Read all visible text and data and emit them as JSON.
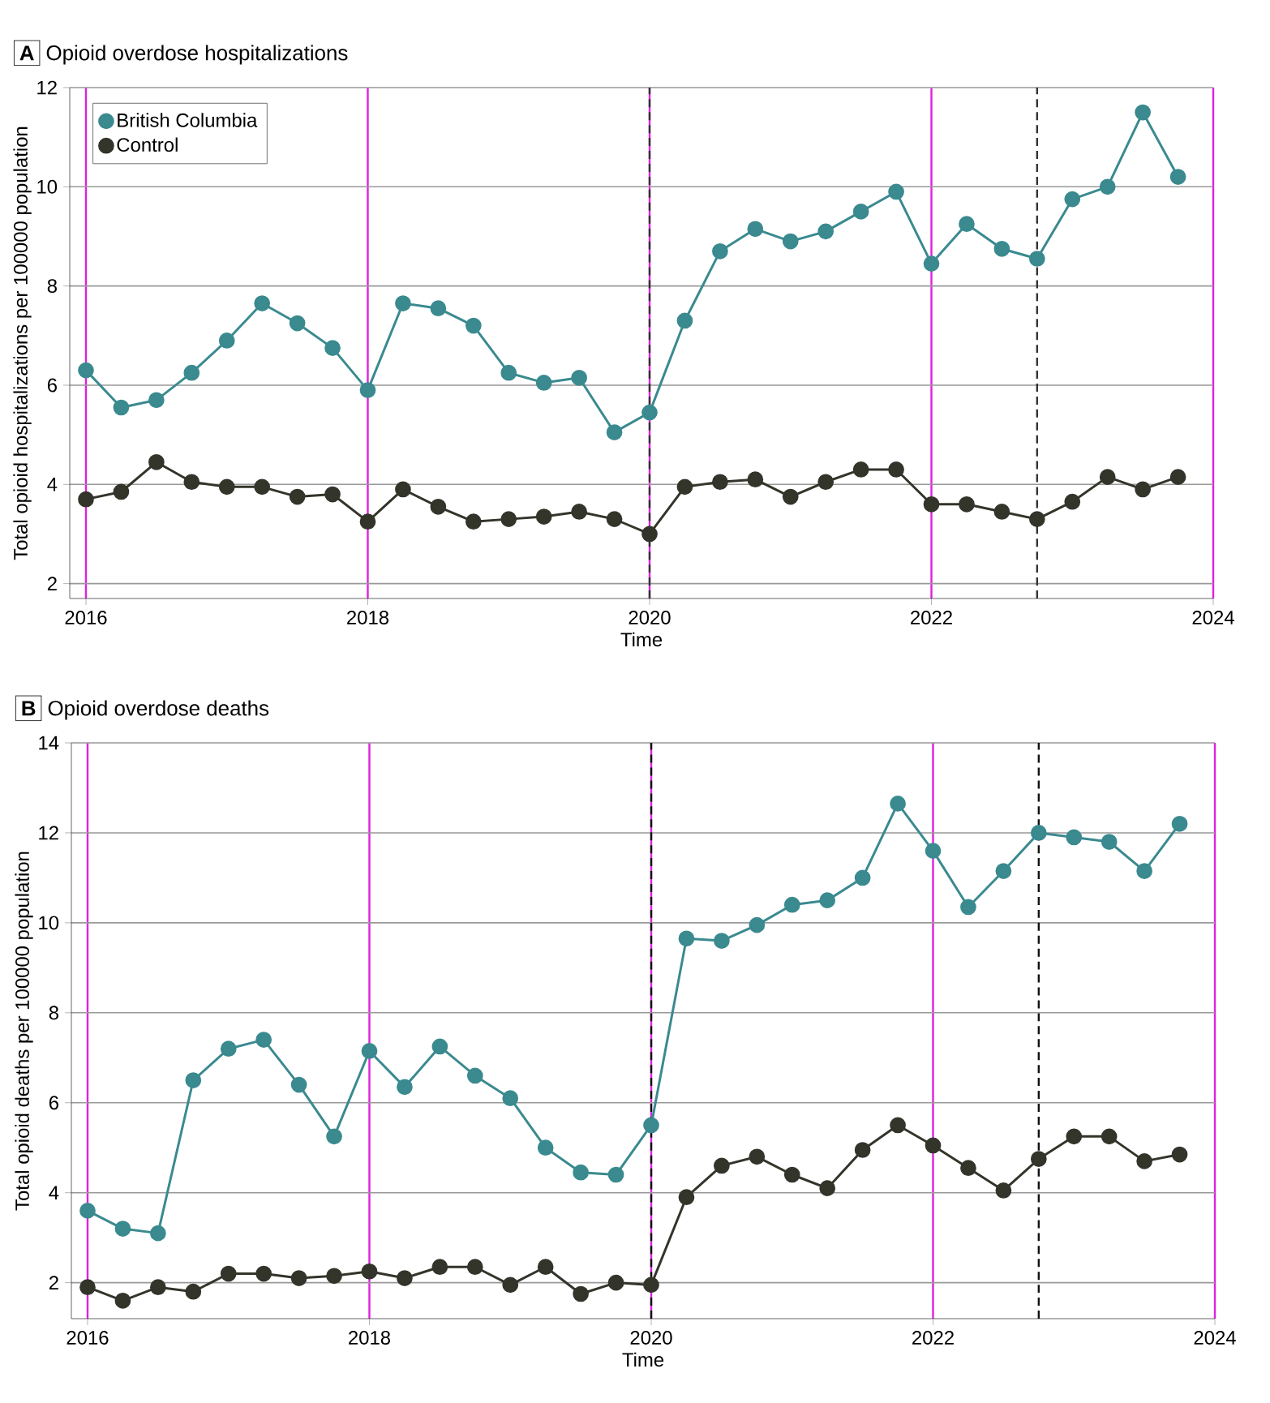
{
  "chart_data": [
    {
      "type": "line",
      "title": "Opioid overdose hospitalizations",
      "xlabel": "Time",
      "ylabel": "Total opioid hospitalizations per 100000 population",
      "annotations": [
        "A"
      ],
      "x": [
        2016,
        2016.25,
        2016.5,
        2016.75,
        2017,
        2017.25,
        2017.5,
        2017.75,
        2018,
        2018.25,
        2018.5,
        2018.75,
        2019,
        2019.25,
        2019.5,
        2019.75,
        2020,
        2020.25,
        2020.5,
        2020.75,
        2021,
        2021.25,
        2021.5,
        2021.75,
        2022,
        2022.25,
        2022.5,
        2022.75,
        2023,
        2023.25,
        2023.5,
        2023.75
      ],
      "series": [
        {
          "name": "British Columbia",
          "color": "#3a8a8f",
          "values": [
            6.3,
            5.55,
            5.7,
            6.25,
            6.9,
            7.65,
            7.25,
            6.75,
            5.9,
            7.65,
            7.55,
            7.2,
            6.25,
            6.05,
            6.15,
            5.05,
            5.45,
            7.3,
            8.7,
            9.15,
            8.9,
            9.1,
            9.5,
            9.9,
            8.45,
            9.25,
            8.75,
            8.55,
            9.75,
            10.0,
            11.5,
            10.2
          ]
        },
        {
          "name": "Control",
          "color": "#33342a",
          "values": [
            3.7,
            3.85,
            4.45,
            4.05,
            3.95,
            3.95,
            3.75,
            3.8,
            3.25,
            3.9,
            3.55,
            3.25,
            3.3,
            3.35,
            3.45,
            3.3,
            3.0,
            3.95,
            4.05,
            4.1,
            3.75,
            4.05,
            4.3,
            4.3,
            3.6,
            3.6,
            3.45,
            3.3,
            3.65,
            4.15,
            3.9,
            4.15
          ]
        }
      ],
      "xlim": [
        2015.885,
        2024
      ],
      "xticks": [
        2016,
        2018,
        2020,
        2022,
        2024
      ],
      "ylim": [
        1.7,
        12
      ],
      "yticks": [
        2,
        4,
        6,
        8,
        10,
        12
      ],
      "ref_lines": [
        {
          "axis": "x",
          "value": 2020,
          "color": "#333333",
          "line_style": "dashed"
        },
        {
          "axis": "x",
          "value": 2022.75,
          "color": "#333333",
          "line_style": "dashed"
        }
      ],
      "grid": true,
      "legend": "top left",
      "marker": "circle",
      "line_style": "solid"
    },
    {
      "type": "line",
      "title": "Opioid overdose deaths",
      "xlabel": "Time",
      "ylabel": "Total opioid deaths per 100000 population",
      "annotations": [
        "B"
      ],
      "x": [
        2016,
        2016.25,
        2016.5,
        2016.75,
        2017,
        2017.25,
        2017.5,
        2017.75,
        2018,
        2018.25,
        2018.5,
        2018.75,
        2019,
        2019.25,
        2019.5,
        2019.75,
        2020,
        2020.25,
        2020.5,
        2020.75,
        2021,
        2021.25,
        2021.5,
        2021.75,
        2022,
        2022.25,
        2022.5,
        2022.75,
        2023,
        2023.25,
        2023.5,
        2023.75
      ],
      "series": [
        {
          "color": "#3a8a8f",
          "values": [
            3.6,
            3.2,
            3.1,
            6.5,
            7.2,
            7.4,
            6.4,
            5.25,
            7.15,
            6.35,
            7.25,
            6.6,
            6.1,
            5.0,
            4.45,
            4.4,
            5.5,
            9.65,
            9.6,
            9.95,
            10.4,
            10.5,
            11.0,
            12.65,
            11.6,
            10.35,
            11.15,
            12.0,
            11.9,
            11.8,
            11.15,
            12.2
          ]
        },
        {
          "color": "#33342a",
          "values": [
            1.9,
            1.6,
            1.9,
            1.8,
            2.2,
            2.2,
            2.1,
            2.15,
            2.25,
            2.1,
            2.35,
            2.35,
            1.95,
            2.35,
            1.75,
            2.0,
            1.95,
            3.9,
            4.6,
            4.8,
            4.4,
            4.1,
            4.95,
            5.5,
            5.05,
            4.55,
            4.05,
            4.75,
            5.25,
            5.25,
            4.7,
            4.85
          ]
        }
      ],
      "xlim": [
        2015.885,
        2024
      ],
      "xticks": [
        2016,
        2018,
        2020,
        2022,
        2024
      ],
      "ylim": [
        1.2,
        14
      ],
      "yticks": [
        2,
        4,
        6,
        8,
        10,
        12,
        14
      ],
      "ref_lines": [
        {
          "axis": "x",
          "value": 2020,
          "color": "#111111",
          "line_style": "dashed"
        },
        {
          "axis": "x",
          "value": 2022.75,
          "color": "#111111",
          "line_style": "dashed"
        }
      ],
      "grid": true,
      "marker": "circle",
      "line_style": "solid"
    }
  ]
}
